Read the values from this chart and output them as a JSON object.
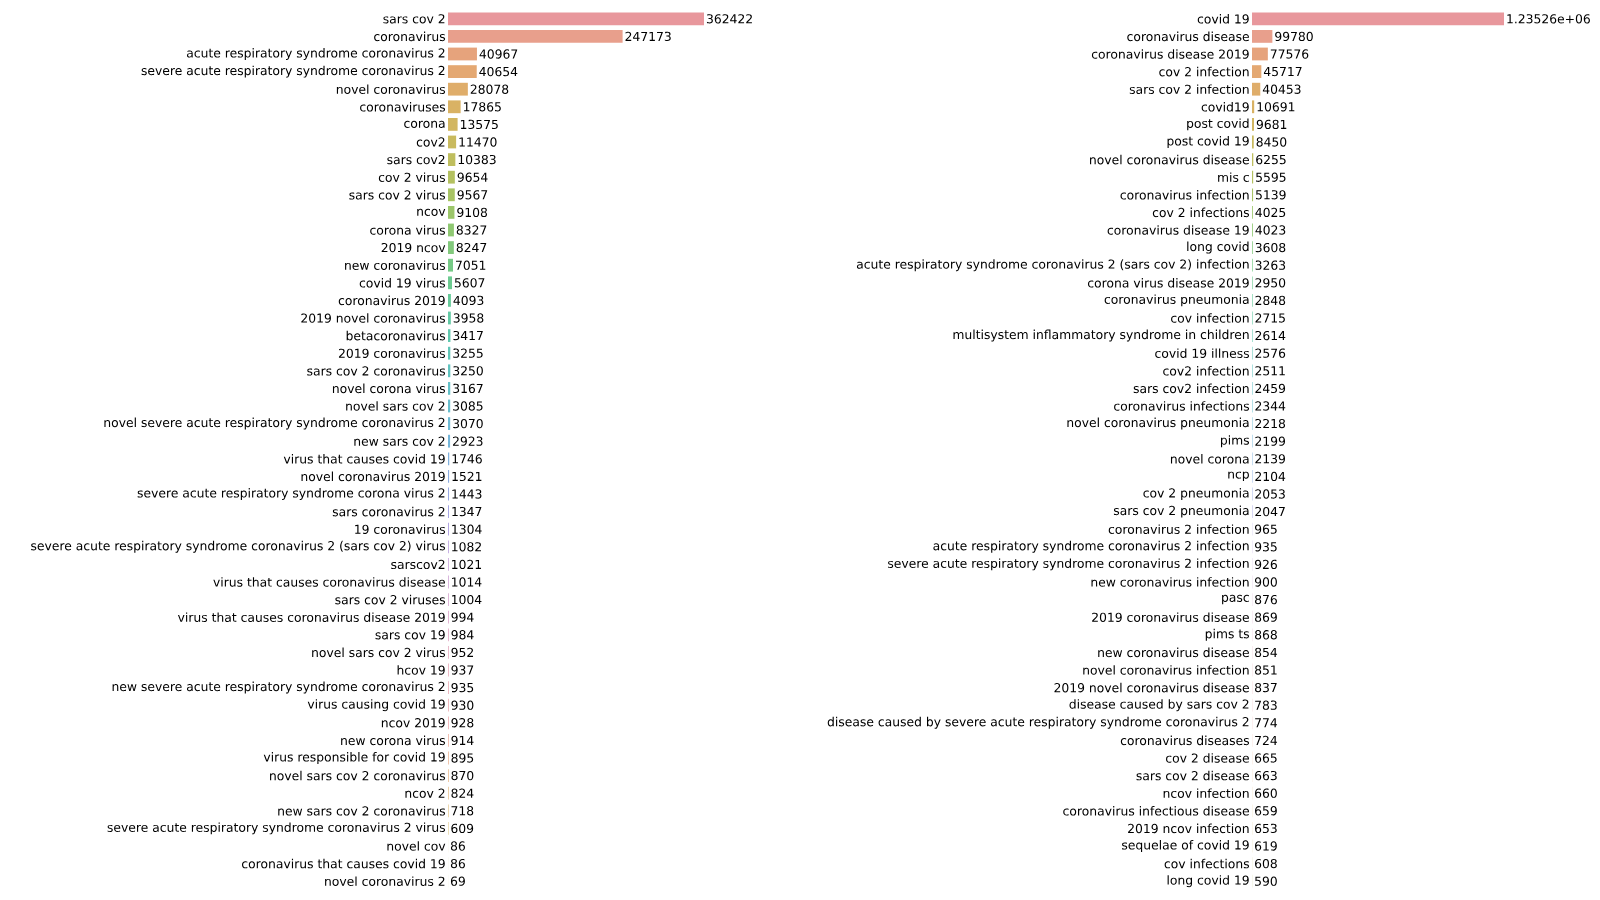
{
  "chart_data": [
    {
      "type": "bar",
      "orientation": "horizontal",
      "categories": [
        "sars cov 2",
        "coronavirus",
        "acute respiratory syndrome coronavirus 2",
        "severe acute respiratory syndrome coronavirus 2",
        "novel coronavirus",
        "coronaviruses",
        "corona",
        "cov2",
        "sars cov2",
        "cov 2 virus",
        "sars cov 2 virus",
        "ncov",
        "corona virus",
        "2019 ncov",
        "new coronavirus",
        "covid 19 virus",
        "coronavirus 2019",
        "2019 novel coronavirus",
        "betacoronavirus",
        "2019 coronavirus",
        "sars cov 2 coronavirus",
        "novel corona virus",
        "novel sars cov 2",
        "novel severe acute respiratory syndrome coronavirus 2",
        "new sars cov 2",
        "virus that causes covid 19",
        "novel coronavirus 2019",
        "severe acute respiratory syndrome corona virus 2",
        "sars coronavirus 2",
        "19 coronavirus",
        "severe acute respiratory syndrome coronavirus 2 (sars cov 2) virus",
        "sarscov2",
        "virus that causes coronavirus disease",
        "sars cov 2 viruses",
        "virus that causes coronavirus disease 2019",
        "sars cov 19",
        "novel sars cov 2 virus",
        "hcov 19",
        "new severe acute respiratory syndrome coronavirus 2",
        "virus causing covid 19",
        "ncov 2019",
        "new corona virus",
        "virus responsible for covid 19",
        "novel sars cov 2 coronavirus",
        "ncov 2",
        "new sars cov 2 coronavirus",
        "severe acute respiratory syndrome coronavirus 2 virus",
        "novel cov",
        "coronavirus that causes covid 19",
        "novel coronavirus 2"
      ],
      "values": [
        362422,
        247173,
        40967,
        40654,
        28078,
        17865,
        13575,
        11470,
        10383,
        9654,
        9567,
        9108,
        8327,
        8247,
        7051,
        5607,
        4093,
        3958,
        3417,
        3255,
        3250,
        3167,
        3085,
        3070,
        2923,
        1746,
        1521,
        1443,
        1347,
        1304,
        1082,
        1021,
        1014,
        1004,
        994,
        984,
        952,
        937,
        935,
        930,
        928,
        914,
        895,
        870,
        824,
        718,
        609,
        86,
        86,
        69
      ],
      "value_labels": [
        "362422",
        "247173",
        "40967",
        "40654",
        "28078",
        "17865",
        "13575",
        "11470",
        "10383",
        "9654",
        "9567",
        "9108",
        "8327",
        "8247",
        "7051",
        "5607",
        "4093",
        "3958",
        "3417",
        "3255",
        "3250",
        "3167",
        "3085",
        "3070",
        "2923",
        "1746",
        "1521",
        "1443",
        "1347",
        "1304",
        "1082",
        "1021",
        "1014",
        "1004",
        "994",
        "984",
        "952",
        "937",
        "935",
        "930",
        "928",
        "914",
        "895",
        "870",
        "824",
        "718",
        "609",
        "86",
        "86",
        "69"
      ],
      "colors": [
        "#e8979c",
        "#e89f8c",
        "#e6a37c",
        "#e4a872",
        "#dfad6a",
        "#d9b264",
        "#d2b660",
        "#c9ba5e",
        "#bfbe5e",
        "#b4c160",
        "#a8c464",
        "#9cc66a",
        "#8fc872",
        "#82c97c",
        "#76ca86",
        "#6cca90",
        "#66ca9a",
        "#62c9a4",
        "#60c8ae",
        "#60c6b7",
        "#61c4c0",
        "#64c1c8",
        "#68bece",
        "#6ebad4",
        "#76b6d9",
        "#80b1dd",
        "#8aace0",
        "#96a7e2",
        "#a2a2e2",
        "#ad9ee0",
        "#b89bdc",
        "#c199d6",
        "#c998d0",
        "#d098c9",
        "#d698c2",
        "#db98ba",
        "#df98b2",
        "#e298aa",
        "#e498a4",
        "#e6989f",
        "#e8979c",
        "#e89f8c",
        "#e6a37c",
        "#e4a872",
        "#dfad6a",
        "#d9b264",
        "#d2b660",
        "#c9ba5e",
        "#bfbe5e",
        "#b4c160"
      ]
    },
    {
      "type": "bar",
      "orientation": "horizontal",
      "categories": [
        "covid 19",
        "coronavirus disease",
        "coronavirus disease 2019",
        "cov 2 infection",
        "sars cov 2 infection",
        "covid19",
        "post covid",
        "post covid 19",
        "novel coronavirus disease",
        "mis c",
        "coronavirus infection",
        "cov 2 infections",
        "coronavirus disease 19",
        "long covid",
        "acute respiratory syndrome coronavirus 2 (sars cov 2) infection",
        "corona virus disease 2019",
        "coronavirus pneumonia",
        "cov infection",
        "multisystem inflammatory syndrome in children",
        "covid 19 illness",
        "cov2 infection",
        "sars cov2 infection",
        "coronavirus infections",
        "novel coronavirus pneumonia",
        "pims",
        "novel corona",
        "ncp",
        "cov 2 pneumonia",
        "sars cov 2 pneumonia",
        "coronavirus 2 infection",
        "acute respiratory syndrome coronavirus 2 infection",
        "severe acute respiratory syndrome coronavirus 2 infection",
        "new coronavirus infection",
        "pasc",
        "2019 coronavirus disease",
        "pims ts",
        "new coronavirus disease",
        "novel coronavirus infection",
        "2019 novel coronavirus disease",
        "disease caused by sars cov 2",
        "disease caused by severe acute respiratory syndrome coronavirus 2",
        "coronavirus diseases",
        "cov 2 disease",
        "sars cov 2 disease",
        "ncov infection",
        "coronavirus infectious disease",
        "2019 ncov infection",
        "sequelae of covid 19",
        "cov infections",
        "long covid 19"
      ],
      "values": [
        1235260,
        99780,
        77576,
        45717,
        40453,
        10691,
        9681,
        8450,
        6255,
        5595,
        5139,
        4025,
        4023,
        3608,
        3263,
        2950,
        2848,
        2715,
        2614,
        2576,
        2511,
        2459,
        2344,
        2218,
        2199,
        2139,
        2104,
        2053,
        2047,
        965,
        935,
        926,
        900,
        876,
        869,
        868,
        854,
        851,
        837,
        783,
        774,
        724,
        665,
        663,
        660,
        659,
        653,
        619,
        608,
        590
      ],
      "value_labels": [
        "1.23526e+06",
        "99780",
        "77576",
        "45717",
        "40453",
        "10691",
        "9681",
        "8450",
        "6255",
        "5595",
        "5139",
        "4025",
        "4023",
        "3608",
        "3263",
        "2950",
        "2848",
        "2715",
        "2614",
        "2576",
        "2511",
        "2459",
        "2344",
        "2218",
        "2199",
        "2139",
        "2104",
        "2053",
        "2047",
        "965",
        "935",
        "926",
        "900",
        "876",
        "869",
        "868",
        "854",
        "851",
        "837",
        "783",
        "774",
        "724",
        "665",
        "663",
        "660",
        "659",
        "653",
        "619",
        "608",
        "590"
      ],
      "colors": [
        "#e8979c",
        "#e89f8c",
        "#e6a37c",
        "#e4a872",
        "#dfad6a",
        "#d9b264",
        "#d2b660",
        "#c9ba5e",
        "#bfbe5e",
        "#b4c160",
        "#a8c464",
        "#9cc66a",
        "#8fc872",
        "#82c97c",
        "#76ca86",
        "#6cca90",
        "#66ca9a",
        "#62c9a4",
        "#60c8ae",
        "#60c6b7",
        "#61c4c0",
        "#64c1c8",
        "#68bece",
        "#6ebad4",
        "#76b6d9",
        "#80b1dd",
        "#8aace0",
        "#96a7e2",
        "#a2a2e2",
        "#ad9ee0",
        "#b89bdc",
        "#c199d6",
        "#c998d0",
        "#d098c9",
        "#d698c2",
        "#db98ba",
        "#df98b2",
        "#e298aa",
        "#e498a4",
        "#e6989f",
        "#e8979c",
        "#e89f8c",
        "#e6a37c",
        "#e4a872",
        "#dfad6a",
        "#d9b264",
        "#d2b660",
        "#c9ba5e",
        "#bfbe5e",
        "#b4c160"
      ]
    }
  ]
}
